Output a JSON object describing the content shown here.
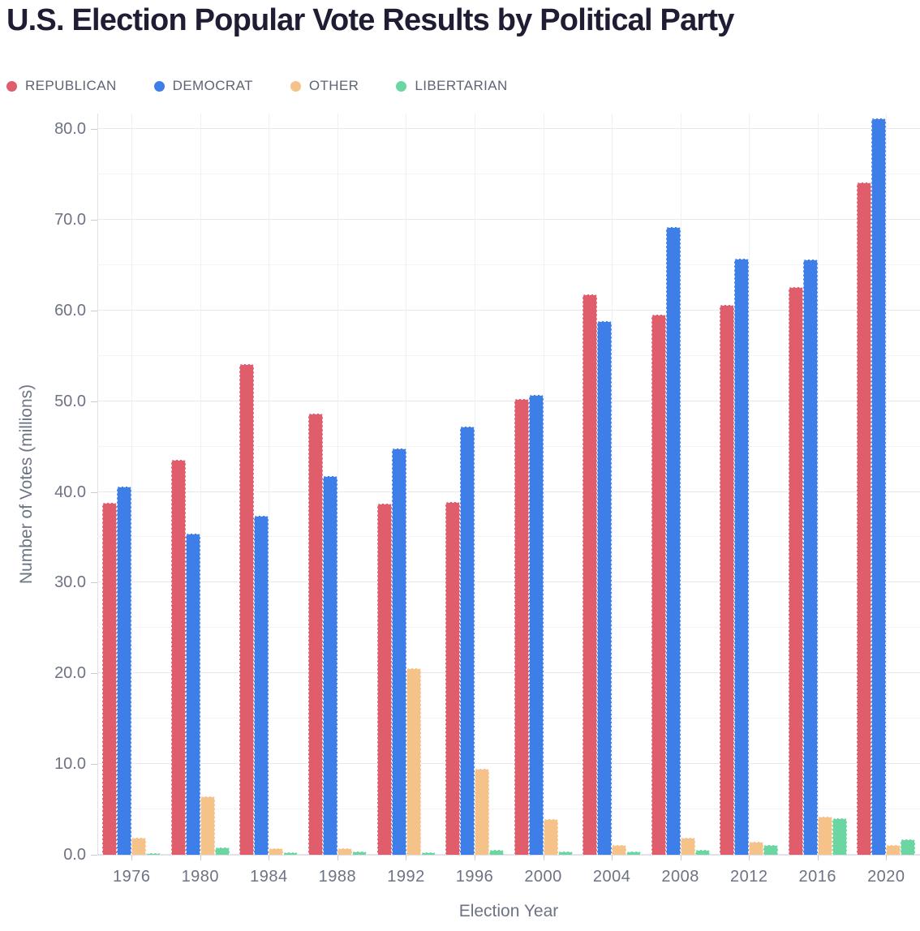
{
  "title": "U.S. Election Popular Vote Results by Political Party",
  "chart_data": {
    "type": "bar",
    "title": "U.S. Election Popular Vote Results by Political Party",
    "xlabel": "Election Year",
    "ylabel": "Number of Votes (millions)",
    "categories": [
      "1976",
      "1980",
      "1984",
      "1988",
      "1992",
      "1996",
      "2000",
      "2004",
      "2008",
      "2012",
      "2016",
      "2020"
    ],
    "series": [
      {
        "name": "REPUBLICAN",
        "color": "#E05D6C",
        "values": [
          38.8,
          43.5,
          54.1,
          48.6,
          38.7,
          38.9,
          50.2,
          61.8,
          59.5,
          60.6,
          62.6,
          74.1
        ]
      },
      {
        "name": "DEMOCRAT",
        "color": "#3E7EE8",
        "values": [
          40.6,
          35.4,
          37.4,
          41.7,
          44.8,
          47.2,
          50.7,
          58.8,
          69.2,
          65.7,
          65.6,
          81.2
        ]
      },
      {
        "name": "OTHER",
        "color": "#F5C289",
        "values": [
          1.9,
          6.4,
          0.7,
          0.7,
          20.6,
          9.5,
          3.9,
          1.1,
          1.9,
          1.4,
          4.2,
          1.1
        ]
      },
      {
        "name": "LIBERTARIAN",
        "color": "#6CD6A3",
        "values": [
          0.2,
          0.8,
          0.3,
          0.4,
          0.3,
          0.5,
          0.4,
          0.4,
          0.5,
          1.1,
          4.0,
          1.7
        ]
      }
    ],
    "ylim": [
      0,
      81.7
    ],
    "y_major_step": 10,
    "y_minor_step": 5,
    "y_tick_labels": [
      "0.0",
      "10.0",
      "20.0",
      "30.0",
      "40.0",
      "50.0",
      "60.0",
      "70.0",
      "80.0"
    ],
    "grid": "on",
    "legend_position": "top-left"
  },
  "colors": {
    "background": "#FFFFFF",
    "title_text": "#1F1D33",
    "axis_text": "#6D7384",
    "legend_text": "#5D6473",
    "grid_major": "#E7E7EF",
    "grid_minor": "#F2F2F7",
    "axis_line": "#E0E1EA"
  }
}
